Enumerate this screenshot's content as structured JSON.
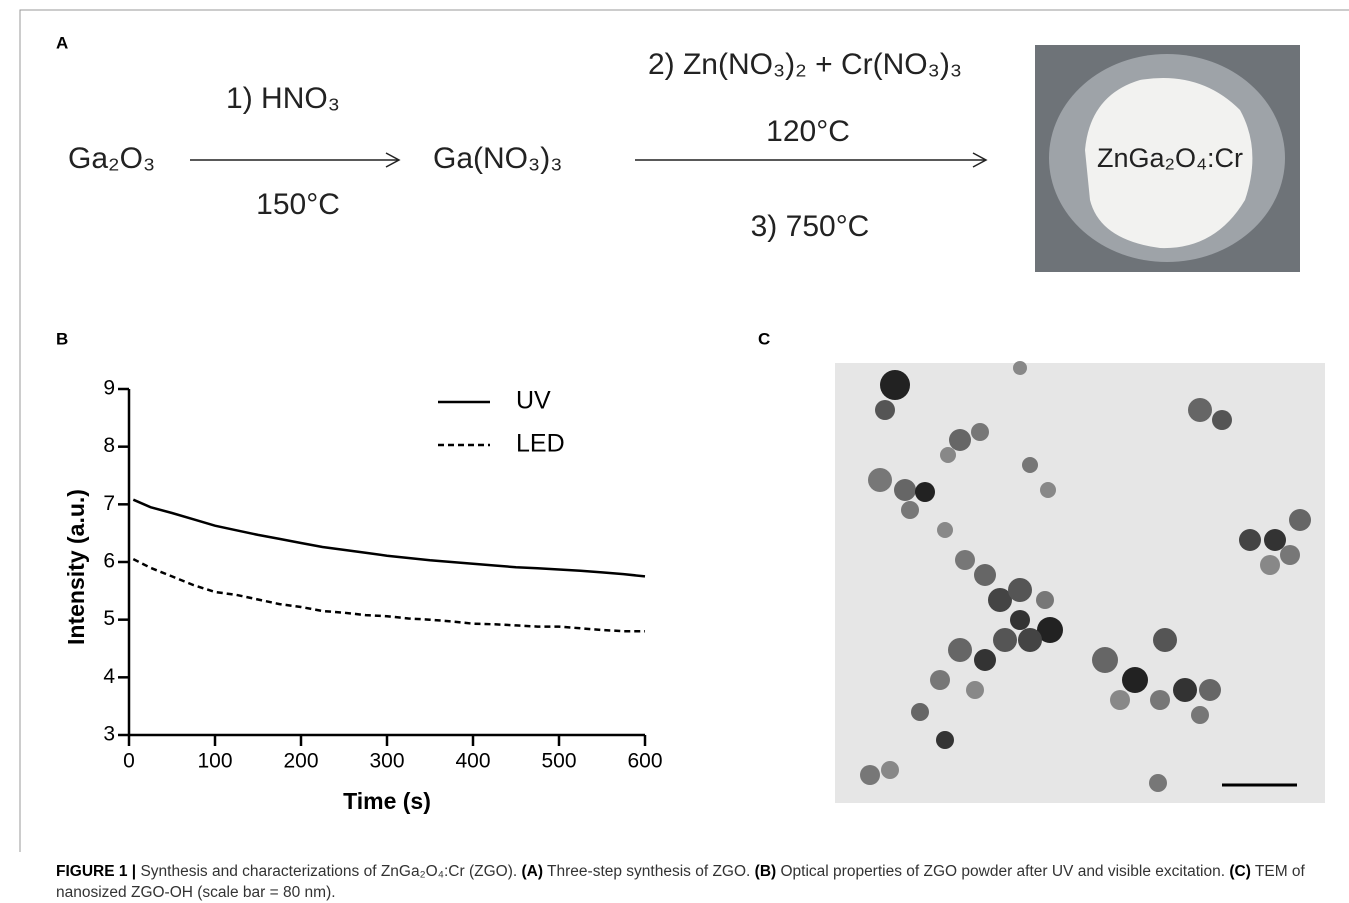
{
  "panel_a": {
    "label": "A",
    "start": "Ga₂O₃",
    "step1_reagent": "1) HNO₃",
    "step1_condition": "150°C",
    "intermediate": "Ga(NO₃)₃",
    "step2_reagent": "2) Zn(NO₃)₂ + Cr(NO₃)₃",
    "step2_condition": "120°C",
    "step3": "3) 750°C",
    "product": "ZnGa₂O₄:Cr"
  },
  "panel_b_label": "B",
  "chart_data": {
    "type": "line",
    "x_label": "Time (s)",
    "y_label": "Intensity (a.u.)",
    "x": [
      5,
      25,
      50,
      75,
      100,
      125,
      150,
      175,
      200,
      225,
      250,
      275,
      300,
      325,
      350,
      375,
      400,
      425,
      450,
      475,
      500,
      525,
      550,
      575,
      600
    ],
    "series": [
      {
        "name": "UV",
        "color": "#000000",
        "dash": "solid",
        "values": [
          7.08,
          6.95,
          6.85,
          6.74,
          6.63,
          6.55,
          6.47,
          6.4,
          6.33,
          6.26,
          6.21,
          6.16,
          6.11,
          6.07,
          6.03,
          6.0,
          5.97,
          5.94,
          5.91,
          5.89,
          5.87,
          5.85,
          5.82,
          5.79,
          5.75
        ]
      },
      {
        "name": "LED",
        "color": "#000000",
        "dash": "dashed",
        "values": [
          6.05,
          5.9,
          5.75,
          5.6,
          5.48,
          5.43,
          5.35,
          5.27,
          5.22,
          5.15,
          5.12,
          5.08,
          5.06,
          5.02,
          5.0,
          4.97,
          4.93,
          4.92,
          4.9,
          4.88,
          4.88,
          4.85,
          4.82,
          4.8,
          4.8
        ]
      }
    ],
    "xlim": [
      0,
      600
    ],
    "xticks": [
      0,
      100,
      200,
      300,
      400,
      500,
      600
    ],
    "ylim": [
      3,
      9
    ],
    "yticks": [
      3,
      4,
      5,
      6,
      7,
      8,
      9
    ],
    "grid": false,
    "legend": "top-right"
  },
  "panel_c_label": "C",
  "caption": {
    "label": "FIGURE 1 |",
    "segments": [
      " Synthesis and characterizations of ZnGa₂O₄:Cr (ZGO). ",
      "(A)",
      " Three-step synthesis of ZGO. ",
      "(B)",
      " Optical properties of ZGO powder after UV and visible excitation. ",
      "(C)",
      " TEM of nanosized ZGO-OH (scale bar = 80 nm)."
    ]
  }
}
